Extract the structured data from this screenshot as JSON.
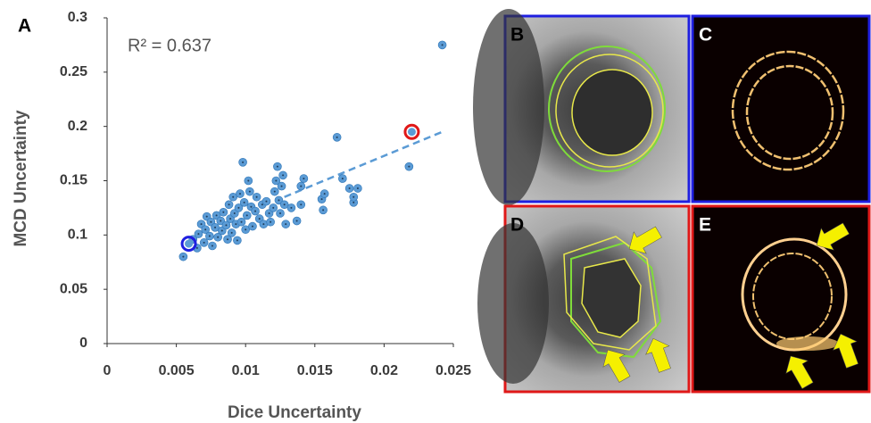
{
  "panel_label": "A",
  "chart_data": {
    "type": "scatter",
    "x_label": "Dice Uncertainty",
    "y_label": "MCD Uncertainty",
    "annotation": "R² = 0.637",
    "color": "#5b9bd5",
    "x": [
      0.0055,
      0.0062,
      0.0065,
      0.0066,
      0.0068,
      0.007,
      0.0071,
      0.0072,
      0.0074,
      0.0075,
      0.0076,
      0.0078,
      0.0079,
      0.008,
      0.0082,
      0.0083,
      0.0084,
      0.0086,
      0.0087,
      0.0088,
      0.0089,
      0.009,
      0.0091,
      0.0092,
      0.0093,
      0.0094,
      0.0095,
      0.0096,
      0.0097,
      0.0098,
      0.0099,
      0.01,
      0.0101,
      0.0102,
      0.0103,
      0.0104,
      0.0105,
      0.0107,
      0.0108,
      0.011,
      0.0112,
      0.0113,
      0.0115,
      0.0117,
      0.0118,
      0.012,
      0.0121,
      0.0122,
      0.0123,
      0.0124,
      0.0125,
      0.0126,
      0.0127,
      0.0128,
      0.0129,
      0.0133,
      0.0137,
      0.014,
      0.014,
      0.0142,
      0.0155,
      0.0156,
      0.0157,
      0.0166,
      0.017,
      0.0175,
      0.0178,
      0.0178,
      0.0181,
      0.0218,
      0.0242
    ],
    "y": [
      0.08,
      0.096,
      0.088,
      0.101,
      0.11,
      0.093,
      0.105,
      0.117,
      0.099,
      0.112,
      0.09,
      0.107,
      0.118,
      0.098,
      0.113,
      0.104,
      0.121,
      0.109,
      0.096,
      0.128,
      0.115,
      0.102,
      0.135,
      0.12,
      0.11,
      0.095,
      0.125,
      0.138,
      0.112,
      0.167,
      0.13,
      0.105,
      0.118,
      0.15,
      0.14,
      0.126,
      0.108,
      0.122,
      0.135,
      0.115,
      0.128,
      0.11,
      0.131,
      0.12,
      0.112,
      0.125,
      0.14,
      0.15,
      0.163,
      0.132,
      0.12,
      0.145,
      0.155,
      0.128,
      0.11,
      0.125,
      0.113,
      0.128,
      0.145,
      0.152,
      0.133,
      0.123,
      0.138,
      0.19,
      0.152,
      0.143,
      0.13,
      0.135,
      0.143,
      0.163,
      0.275
    ],
    "highlighted_points": [
      {
        "x": 0.0059,
        "y": 0.092,
        "color": "#1f1fe0"
      },
      {
        "x": 0.022,
        "y": 0.195,
        "color": "#e01818"
      }
    ],
    "trendline": {
      "x": [
        0.0128,
        0.0242
      ],
      "y": [
        0.135,
        0.195
      ],
      "color": "#5b9bd5"
    },
    "xlim": [
      0,
      0.025
    ],
    "xticks": [
      0,
      0.005,
      0.01,
      0.015,
      0.02,
      0.025
    ],
    "ylim": [
      0,
      0.3
    ],
    "yticks": [
      0,
      0.05,
      0.1,
      0.15,
      0.2,
      0.25,
      0.3
    ],
    "grid": false
  },
  "image_panels": [
    {
      "label": "B",
      "border": "#1f1fe0"
    },
    {
      "label": "C",
      "border": "#1f1fe0"
    },
    {
      "label": "D",
      "border": "#e01818"
    },
    {
      "label": "E",
      "border": "#e01818"
    }
  ]
}
